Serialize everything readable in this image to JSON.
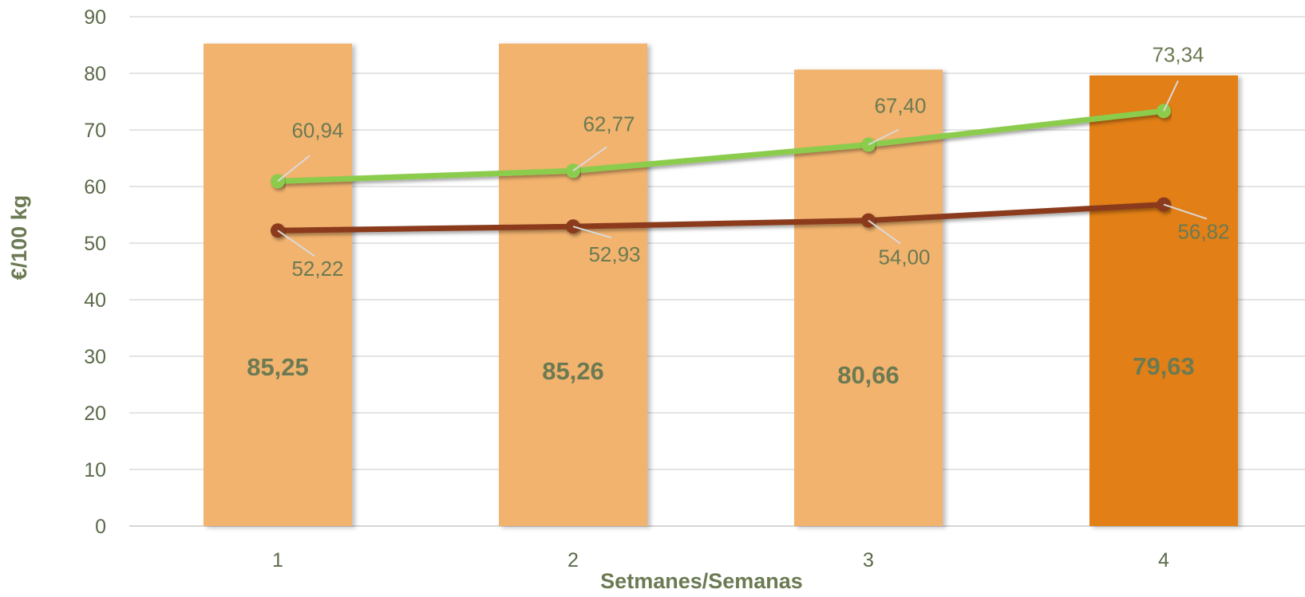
{
  "chart_data": {
    "type": "bar",
    "title": "",
    "xlabel": "Setmanes/Semanas",
    "ylabel": "€/100 kg",
    "categories": [
      "1",
      "2",
      "3",
      "4"
    ],
    "ylim": [
      0,
      90
    ],
    "yticks": [
      "0",
      "10",
      "20",
      "30",
      "40",
      "50",
      "60",
      "70",
      "80",
      "90"
    ],
    "grid": true,
    "legend": "none",
    "bars": {
      "values": [
        85.25,
        85.26,
        80.66,
        79.63
      ],
      "labels": [
        "85,25",
        "85,26",
        "80,66",
        "79,63"
      ],
      "colors": [
        "#f2b36e",
        "#f2b36e",
        "#f2b36e",
        "#e27f13"
      ]
    },
    "series": [
      {
        "type": "line",
        "color": "#8ccc4e",
        "values": [
          60.94,
          62.77,
          67.4,
          73.34
        ],
        "labels": [
          "60,94",
          "62,77",
          "67,40",
          "73,34"
        ]
      },
      {
        "type": "line",
        "color": "#8b3a1c",
        "values": [
          52.22,
          52.93,
          54.0,
          56.82
        ],
        "labels": [
          "52,22",
          "52,93",
          "54,00",
          "56,82"
        ]
      }
    ],
    "colors": {
      "grid": "#dcdcdc",
      "text": "#6b7a52"
    }
  }
}
